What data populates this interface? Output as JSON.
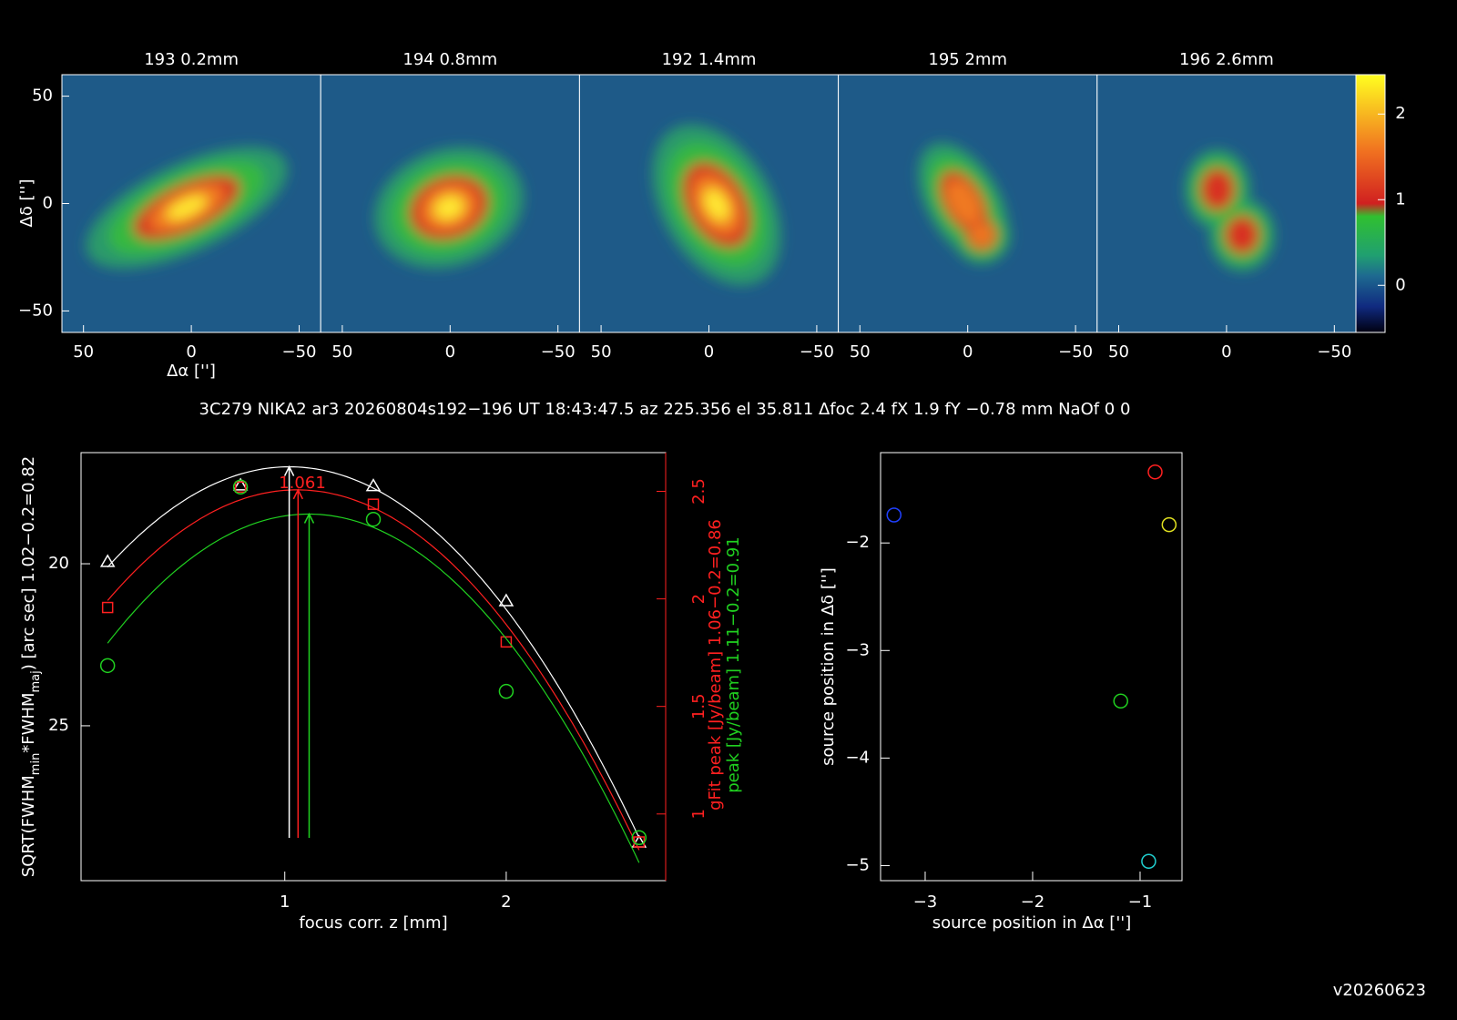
{
  "maps": {
    "titles": [
      "193 0.2mm",
      "194 0.8mm",
      "192 1.4mm",
      "195 2mm",
      "196 2.6mm"
    ],
    "xlabel": "Δα ['']",
    "ylabel": "Δδ ['']",
    "xlim": [
      60,
      -60
    ],
    "ylim": [
      -60,
      60
    ],
    "xticks": [
      50,
      0,
      {
        "value": -50,
        "label": "−50"
      }
    ],
    "yticks": [
      50,
      0,
      {
        "value": -50,
        "label": "−50"
      }
    ],
    "colorbar_lim": [
      -0.55,
      2.46
    ],
    "colorbar_ticks": [
      0,
      1,
      2
    ]
  },
  "info_line": "3C279 NIKA2 ar3 20260804s192−196 UT 18:43:47.5 az 225.356 el 35.811 Δfoc 2.4 fX 1.9 fY −0.78 mm NaOf 0 0",
  "chart_data": [
    {
      "type": "scatter",
      "xlabel": "focus corr. z [mm]",
      "ylabel_parts": [
        "SQRT(FWHM",
        "min",
        "*FWHM",
        "maj",
        ") [arc sec] 1.02−0.2=0.82"
      ],
      "y2labels": [
        {
          "text": "gFit peak [Jy/beam] 1.06−0.2=0.86",
          "color": "#ff2020"
        },
        {
          "text": "peak [Jy/beam] 1.11−0.2=0.91",
          "color": "#20d020"
        }
      ],
      "annotation": "1.061",
      "xlim": [
        0.08,
        2.72
      ],
      "xticks": [
        1,
        2
      ],
      "ylim": [
        29.78,
        16.57
      ],
      "yticks": [
        20,
        25
      ],
      "y2lim": [
        0.69,
        2.68
      ],
      "y2ticks": [
        1,
        1.5,
        2,
        2.5
      ],
      "x": [
        0.2,
        0.8,
        1.4,
        2.0,
        2.6
      ],
      "series": [
        {
          "color": "#ffffff",
          "marker": "triangle",
          "values": [
            19.94,
            17.58,
            17.6,
            21.15,
            28.6
          ]
        },
        {
          "color": "#ff2020",
          "marker": "square",
          "axis": "y2",
          "values": [
            1.96,
            2.52,
            2.44,
            1.8,
            0.87
          ]
        },
        {
          "color": "#20d020",
          "marker": "circle",
          "axis": "y2",
          "values": [
            1.69,
            2.52,
            2.37,
            1.57,
            0.89
          ]
        }
      ],
      "arrows": [
        {
          "x": 1.02,
          "color": "#ffffff"
        },
        {
          "x": 1.06,
          "color": "#ff2020"
        },
        {
          "x": 1.11,
          "color": "#20d020"
        }
      ]
    },
    {
      "type": "scatter",
      "xlabel": "source position in Δα ['']",
      "ylabel": "source position in Δδ ['']",
      "xlim": [
        -3.415,
        -0.61
      ],
      "xticks": [
        {
          "value": -3,
          "label": "−3"
        },
        {
          "value": -2,
          "label": "−2"
        },
        {
          "value": -1,
          "label": "−1"
        }
      ],
      "ylim": [
        -5.14,
        -1.16
      ],
      "yticks": [
        {
          "value": -2,
          "label": "−2"
        },
        {
          "value": -3,
          "label": "−3"
        },
        {
          "value": -4,
          "label": "−4"
        },
        {
          "value": -5,
          "label": "−5"
        }
      ],
      "x": [
        -3.29,
        -0.86,
        -0.73,
        -1.18,
        -0.92
      ],
      "values": [
        -1.74,
        -1.34,
        -1.83,
        -3.47,
        -4.96
      ],
      "colors": [
        "#2040ff",
        "#ff2020",
        "#e0e020",
        "#20d020",
        "#20d0d0"
      ]
    }
  ],
  "version": "v20260623"
}
